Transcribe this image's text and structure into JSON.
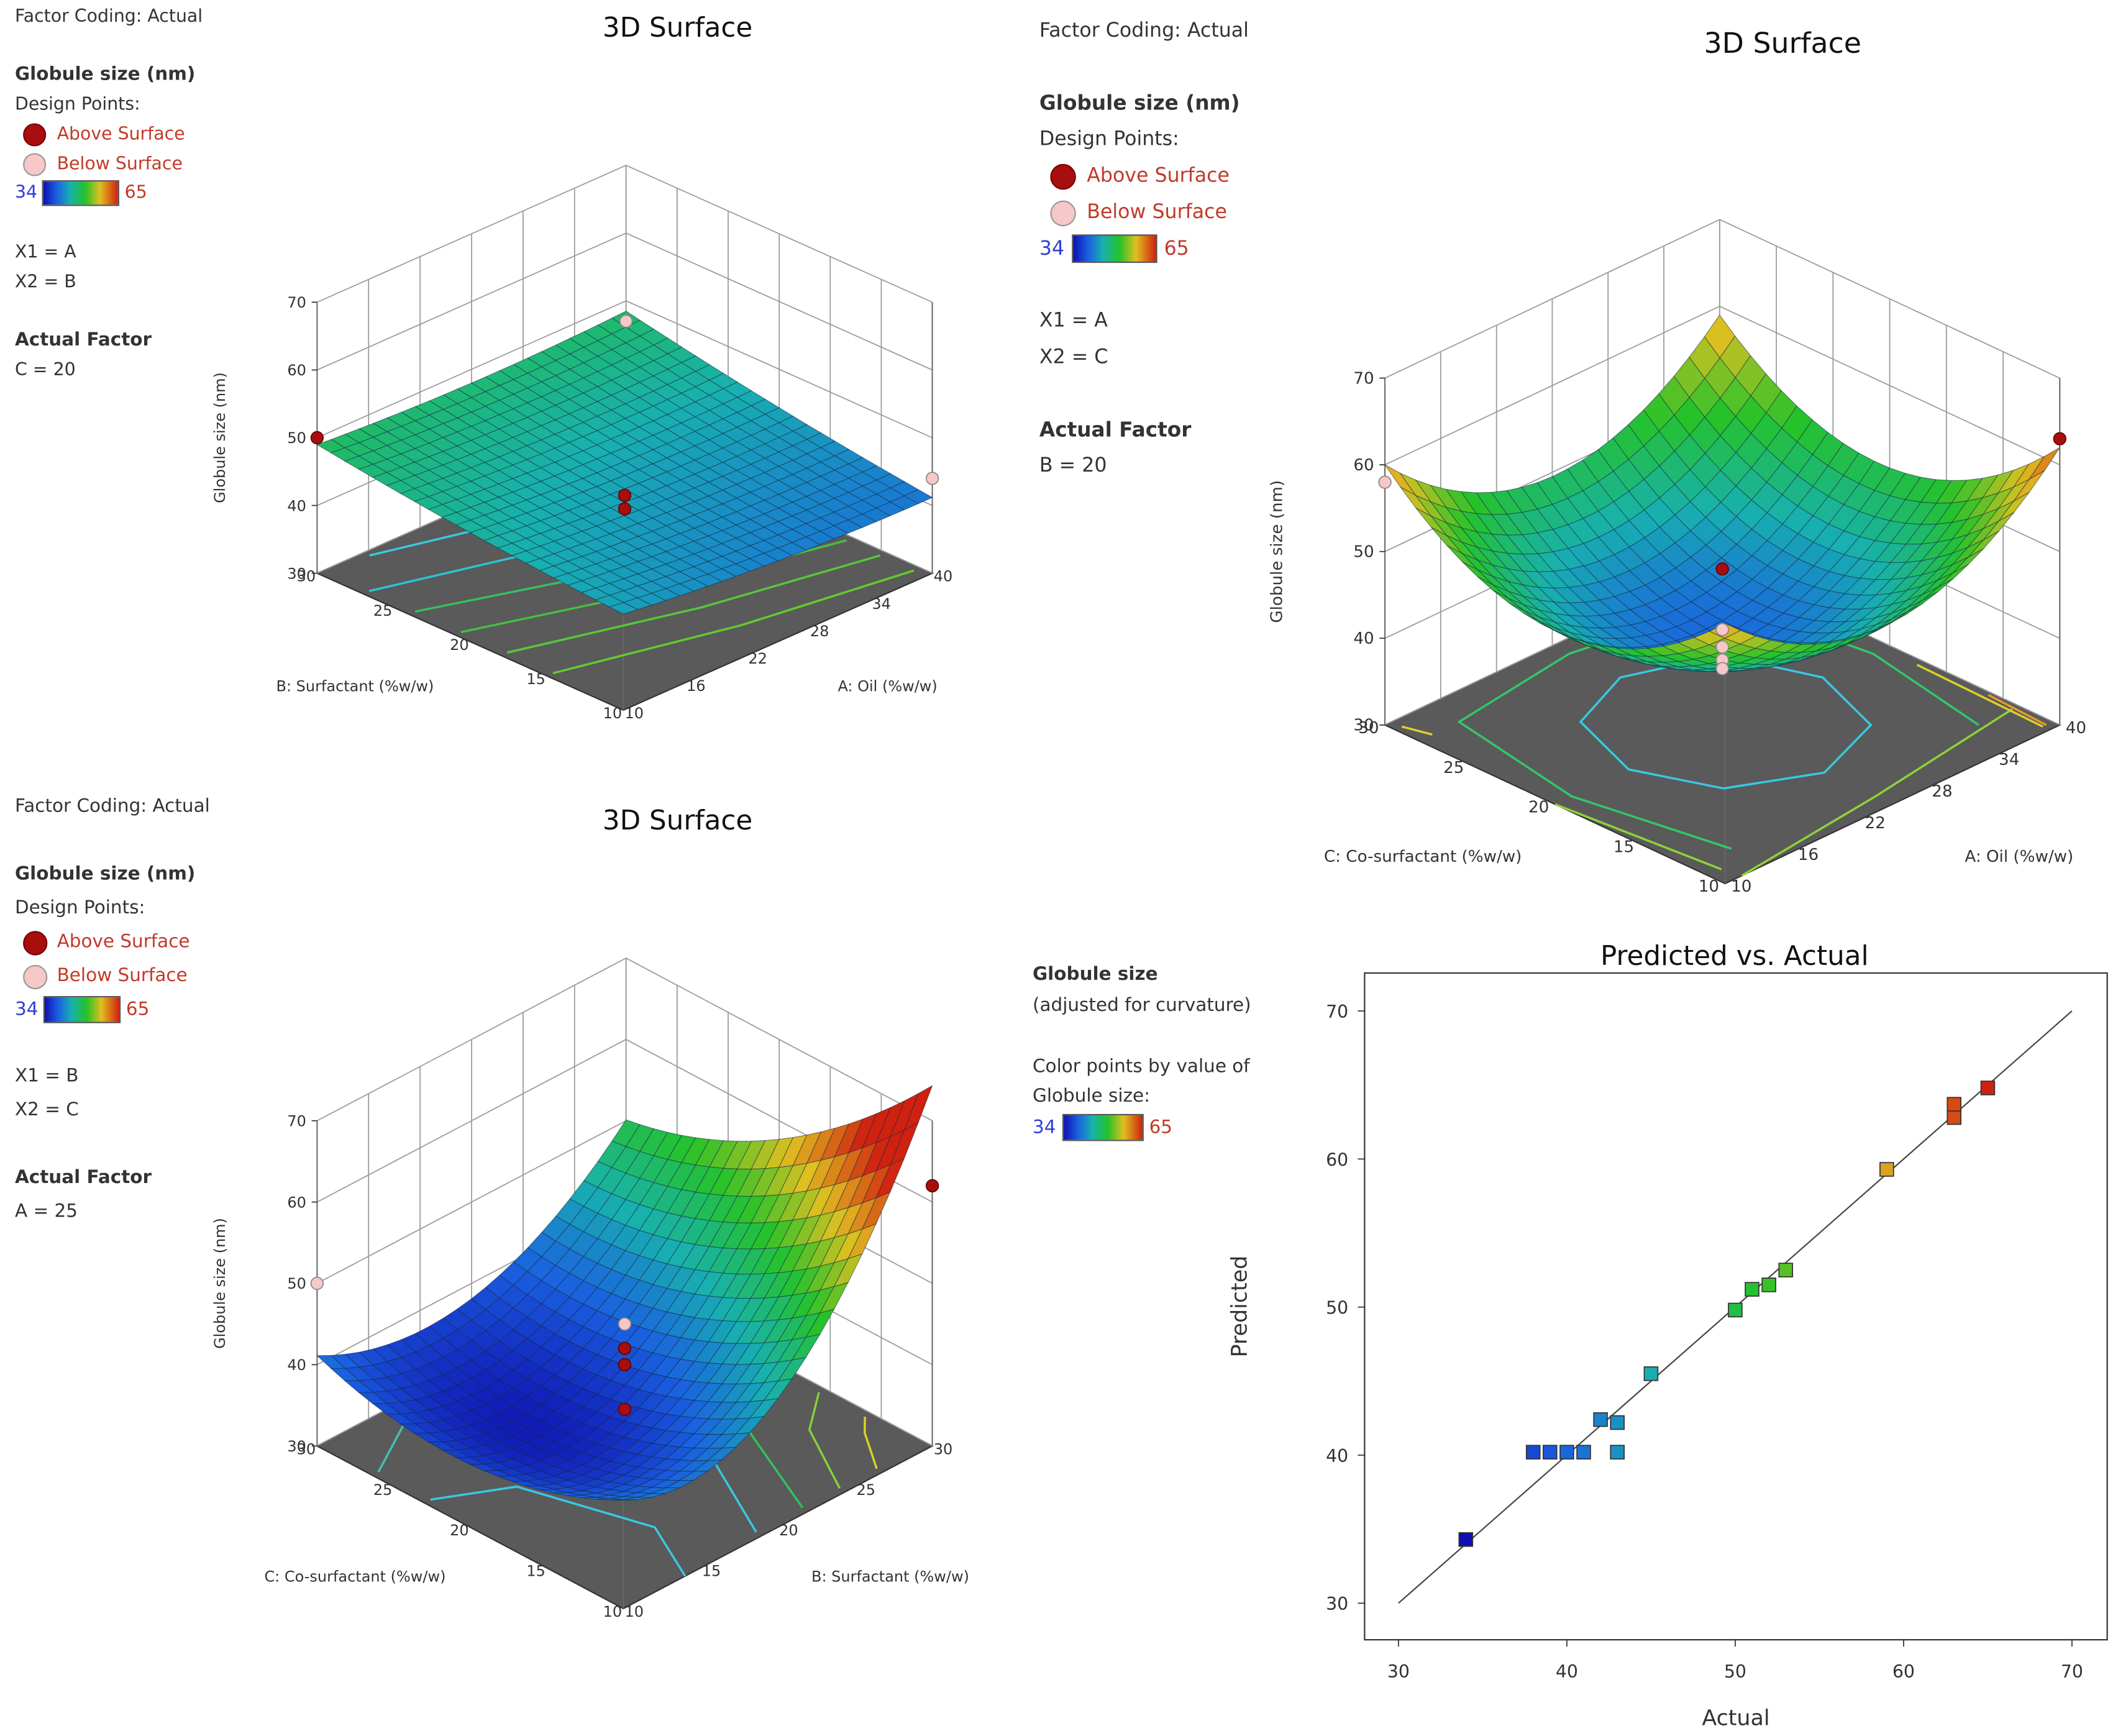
{
  "legend_common": {
    "factor_coding": "Factor Coding: Actual",
    "response": "Globule size (nm)",
    "design_points": "Design Points:",
    "above": "Above Surface",
    "below": "Below Surface",
    "cmin": "34",
    "cmax": "65",
    "actual_factor": "Actual Factor"
  },
  "colors": {
    "above_point": "#a80e0e",
    "below_point": "#f6c8c8",
    "floor": "#5a5a5a",
    "low": "#1010b0",
    "high": "#d02010"
  },
  "chart_data": [
    {
      "type": "surface3d",
      "title": "3D Surface",
      "zlabel": "Globule size (nm)",
      "z_ticks": [
        "30",
        "40",
        "50",
        "60",
        "70"
      ],
      "x1": "X1 = A",
      "x2": "X2 = B",
      "fixed": "C = 20",
      "x_axis": {
        "label": "A: Oil (%w/w)",
        "ticks": [
          "10",
          "16",
          "22",
          "28",
          "34",
          "40"
        ]
      },
      "y_axis": {
        "label": "B: Surfactant (%w/w)",
        "ticks": [
          "10",
          "15",
          "20",
          "25",
          "30"
        ]
      }
    },
    {
      "type": "surface3d",
      "title": "3D Surface",
      "zlabel": "Globule size (nm)",
      "z_ticks": [
        "30",
        "40",
        "50",
        "60",
        "70"
      ],
      "x1": "X1 = A",
      "x2": "X2 = C",
      "fixed": "B = 20",
      "x_axis": {
        "label": "A: Oil (%w/w)",
        "ticks": [
          "10",
          "16",
          "22",
          "28",
          "34",
          "40"
        ]
      },
      "y_axis": {
        "label": "C: Co-surfactant (%w/w)",
        "ticks": [
          "10",
          "15",
          "20",
          "25",
          "30"
        ]
      }
    },
    {
      "type": "surface3d",
      "title": "3D Surface",
      "zlabel": "Globule size (nm)",
      "z_ticks": [
        "30",
        "40",
        "50",
        "60",
        "70"
      ],
      "x1": "X1 = B",
      "x2": "X2 = C",
      "fixed": "A = 25",
      "x_axis": {
        "label": "B: Surfactant (%w/w)",
        "ticks": [
          "10",
          "15",
          "20",
          "25",
          "30"
        ]
      },
      "y_axis": {
        "label": "C: Co-surfactant (%w/w)",
        "ticks": [
          "10",
          "15",
          "20",
          "25",
          "30"
        ]
      }
    },
    {
      "type": "scatter",
      "title": "Predicted vs. Actual",
      "xlabel": "Actual",
      "ylabel": "Predicted",
      "xlim": [
        30,
        70
      ],
      "ylim": [
        30,
        70
      ],
      "x_ticks": [
        30,
        40,
        50,
        60,
        70
      ],
      "y_ticks": [
        30,
        40,
        50,
        60,
        70
      ],
      "legend_title": "Globule size",
      "legend_sub": "(adjusted for curvature)",
      "color_note_1": "Color points by value of",
      "color_note_2": "Globule size:",
      "cmin": "34",
      "cmax": "65",
      "points": [
        {
          "x": 34,
          "y": 34.3
        },
        {
          "x": 38,
          "y": 40.2
        },
        {
          "x": 39,
          "y": 40.2
        },
        {
          "x": 40,
          "y": 40.2
        },
        {
          "x": 41,
          "y": 40.2
        },
        {
          "x": 42,
          "y": 42.4
        },
        {
          "x": 43,
          "y": 42.2
        },
        {
          "x": 43,
          "y": 40.2
        },
        {
          "x": 45,
          "y": 45.5
        },
        {
          "x": 50,
          "y": 49.8
        },
        {
          "x": 51,
          "y": 51.2
        },
        {
          "x": 52,
          "y": 51.5
        },
        {
          "x": 53,
          "y": 52.5
        },
        {
          "x": 59,
          "y": 59.3
        },
        {
          "x": 63,
          "y": 62.8
        },
        {
          "x": 63,
          "y": 63.7
        },
        {
          "x": 65,
          "y": 64.8
        }
      ]
    }
  ]
}
